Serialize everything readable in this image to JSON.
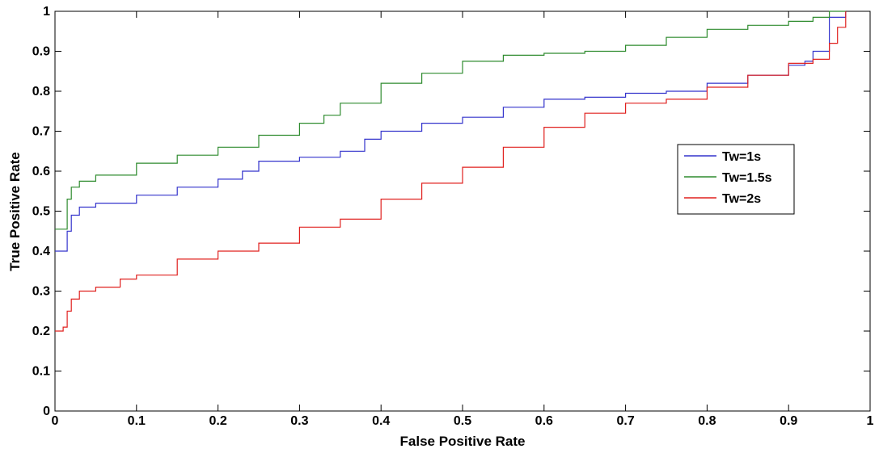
{
  "chart_data": {
    "type": "line",
    "title": "",
    "xlabel": "False Positive Rate",
    "ylabel": "True Positive Rate",
    "xlim": [
      0,
      1
    ],
    "ylim": [
      0,
      1
    ],
    "xticks": [
      "0",
      "0.1",
      "0.2",
      "0.3",
      "0.4",
      "0.5",
      "0.6",
      "0.7",
      "0.8",
      "0.9",
      "1"
    ],
    "yticks": [
      "0",
      "0.1",
      "0.2",
      "0.3",
      "0.4",
      "0.5",
      "0.6",
      "0.7",
      "0.8",
      "0.9",
      "1"
    ],
    "grid": false,
    "legend_position": "right",
    "series": [
      {
        "name": "Tw=1s",
        "color": "#3333cc",
        "x": [
          0,
          0.01,
          0.015,
          0.02,
          0.03,
          0.05,
          0.1,
          0.15,
          0.2,
          0.23,
          0.25,
          0.3,
          0.35,
          0.38,
          0.4,
          0.45,
          0.5,
          0.55,
          0.6,
          0.65,
          0.7,
          0.75,
          0.8,
          0.85,
          0.9,
          0.92,
          0.93,
          0.95,
          0.97
        ],
        "y": [
          0.4,
          0.4,
          0.45,
          0.49,
          0.51,
          0.52,
          0.54,
          0.56,
          0.58,
          0.6,
          0.625,
          0.635,
          0.65,
          0.68,
          0.7,
          0.72,
          0.735,
          0.76,
          0.78,
          0.785,
          0.795,
          0.8,
          0.82,
          0.84,
          0.865,
          0.875,
          0.9,
          0.985,
          1.0
        ]
      },
      {
        "name": "Tw=1.5s",
        "color": "#2e8b2e",
        "x": [
          0,
          0.01,
          0.015,
          0.02,
          0.03,
          0.05,
          0.1,
          0.15,
          0.2,
          0.25,
          0.3,
          0.33,
          0.35,
          0.4,
          0.45,
          0.5,
          0.55,
          0.6,
          0.65,
          0.7,
          0.75,
          0.8,
          0.85,
          0.9,
          0.93,
          0.95,
          0.97
        ],
        "y": [
          0.455,
          0.455,
          0.53,
          0.56,
          0.575,
          0.59,
          0.62,
          0.64,
          0.66,
          0.69,
          0.72,
          0.74,
          0.77,
          0.82,
          0.845,
          0.875,
          0.89,
          0.895,
          0.9,
          0.915,
          0.935,
          0.955,
          0.965,
          0.975,
          0.985,
          1.0,
          1.0
        ]
      },
      {
        "name": "Tw=2s",
        "color": "#e0201e",
        "x": [
          0,
          0.01,
          0.015,
          0.02,
          0.03,
          0.05,
          0.08,
          0.1,
          0.15,
          0.2,
          0.25,
          0.3,
          0.35,
          0.4,
          0.45,
          0.5,
          0.55,
          0.6,
          0.65,
          0.7,
          0.75,
          0.8,
          0.85,
          0.9,
          0.93,
          0.95,
          0.96,
          0.97
        ],
        "y": [
          0.2,
          0.21,
          0.25,
          0.28,
          0.3,
          0.31,
          0.33,
          0.34,
          0.38,
          0.4,
          0.42,
          0.46,
          0.48,
          0.53,
          0.57,
          0.61,
          0.66,
          0.71,
          0.745,
          0.77,
          0.78,
          0.81,
          0.84,
          0.87,
          0.88,
          0.92,
          0.96,
          1.0
        ]
      }
    ]
  }
}
